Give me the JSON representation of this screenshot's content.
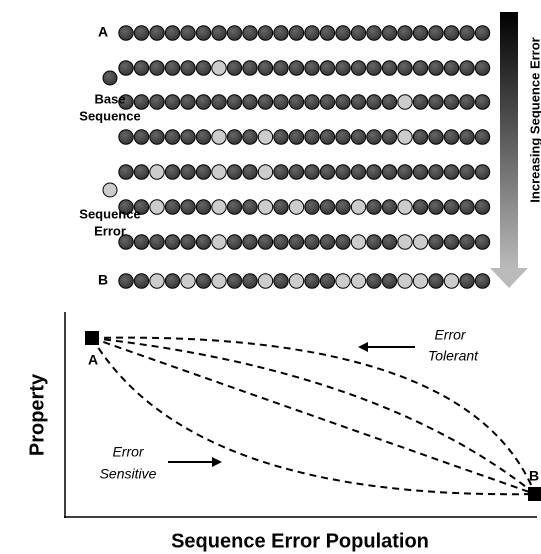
{
  "top_panel": {
    "row_label_a": "A",
    "row_label_b": "B",
    "legend": [
      {
        "lines": [
          "Base",
          "Sequence"
        ]
      },
      {
        "lines": [
          "Sequence",
          "Error"
        ]
      }
    ],
    "arrow_label": "Increasing Sequence Error"
  },
  "bottom_panel": {
    "y_axis_label": "Property",
    "x_axis_label": "Sequence Error Population",
    "point_a": "A",
    "point_b": "B",
    "tolerant_label": [
      "Error",
      "Tolerant"
    ],
    "sensitive_label": [
      "Error",
      "Sensitive"
    ]
  }
}
